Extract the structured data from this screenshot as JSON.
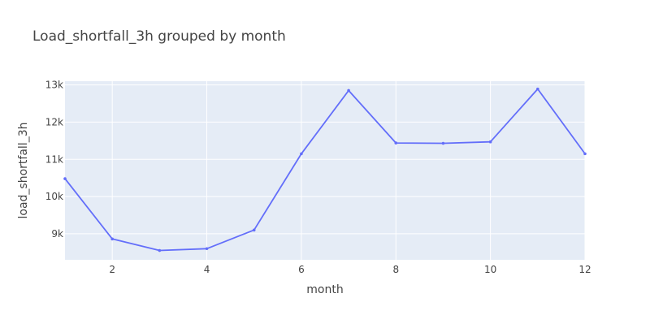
{
  "chart_data": {
    "type": "line",
    "title": "Load_shortfall_3h grouped by month",
    "xlabel": "month",
    "ylabel": "load_shortfall_3h",
    "x": [
      1,
      2,
      3,
      4,
      5,
      6,
      7,
      8,
      9,
      10,
      11,
      12
    ],
    "values": [
      10480,
      8860,
      8550,
      8600,
      9100,
      11150,
      12850,
      11440,
      11430,
      11470,
      12890,
      11150
    ],
    "xlim": [
      1,
      12
    ],
    "ylim": [
      8300,
      13100
    ],
    "xticks": [
      2,
      4,
      6,
      8,
      10,
      12
    ],
    "xtick_labels": [
      "2",
      "4",
      "6",
      "8",
      "10",
      "12"
    ],
    "yticks": [
      9000,
      10000,
      11000,
      12000,
      13000
    ],
    "ytick_labels": [
      "9k",
      "10k",
      "11k",
      "12k",
      "13k"
    ],
    "grid": true,
    "colors": {
      "line": "#636efa",
      "plot_bg": "#e5ecf6",
      "grid": "#ffffff",
      "text": "#444444"
    }
  }
}
